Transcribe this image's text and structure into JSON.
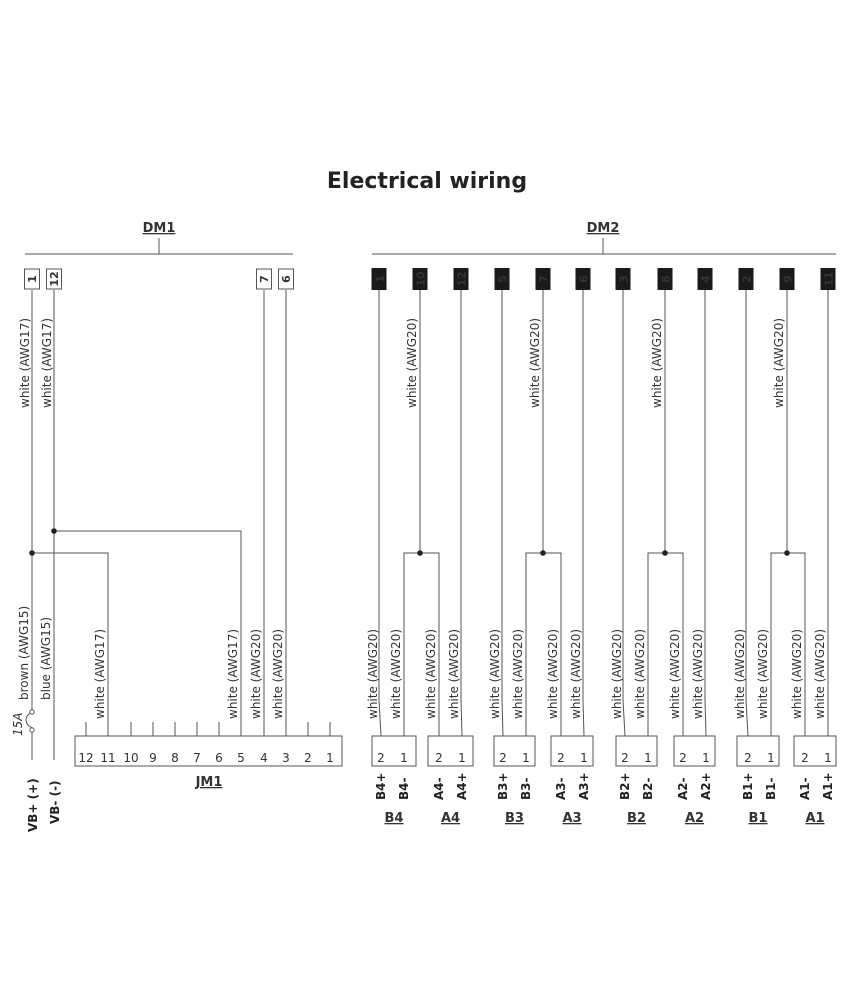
{
  "title": "Electrical wiring",
  "dm1": {
    "label": "DM1",
    "pins": [
      "1",
      "12",
      "7",
      "6"
    ],
    "wire_upper": [
      "white (AWG17)",
      "white (AWG17)"
    ]
  },
  "dm2": {
    "label": "DM2",
    "pins": [
      "1",
      "10",
      "12",
      "5",
      "7",
      "6",
      "3",
      "8",
      "4",
      "2",
      "9",
      "11"
    ],
    "upper_labels": [
      "white (AWG20)",
      "white (AWG20)",
      "white (AWG20)",
      "white (AWG20)"
    ]
  },
  "power": {
    "brown": "brown (AWG15)",
    "blue": "blue (AWG15)",
    "fuse": "15A",
    "vbplus": "VB+ (+)",
    "vbminus": "VB- (-)"
  },
  "jm1": {
    "label": "JM1",
    "terminals": [
      "12",
      "11",
      "10",
      "9",
      "8",
      "7",
      "6",
      "5",
      "4",
      "3",
      "2",
      "1"
    ],
    "wire_labels": [
      "white (AWG17)",
      "white (AWG17)",
      "white (AWG20)",
      "white (AWG20)"
    ]
  },
  "connectors": [
    {
      "label": "B4",
      "pins": [
        "2",
        "1"
      ],
      "signals": [
        "B4+",
        "B4-"
      ],
      "wires": [
        "white (AWG20)",
        "white (AWG20)"
      ]
    },
    {
      "label": "A4",
      "pins": [
        "2",
        "1"
      ],
      "signals": [
        "A4-",
        "A4+"
      ],
      "wires": [
        "white (AWG20)",
        "white (AWG20)"
      ]
    },
    {
      "label": "B3",
      "pins": [
        "2",
        "1"
      ],
      "signals": [
        "B3+",
        "B3-"
      ],
      "wires": [
        "white (AWG20)",
        "white (AWG20)"
      ]
    },
    {
      "label": "A3",
      "pins": [
        "2",
        "1"
      ],
      "signals": [
        "A3-",
        "A3+"
      ],
      "wires": [
        "white (AWG20)",
        "white (AWG20)"
      ]
    },
    {
      "label": "B2",
      "pins": [
        "2",
        "1"
      ],
      "signals": [
        "B2+",
        "B2-"
      ],
      "wires": [
        "white (AWG20)",
        "white (AWG20)"
      ]
    },
    {
      "label": "A2",
      "pins": [
        "2",
        "1"
      ],
      "signals": [
        "A2-",
        "A2+"
      ],
      "wires": [
        "white (AWG20)",
        "white (AWG20)"
      ]
    },
    {
      "label": "B1",
      "pins": [
        "2",
        "1"
      ],
      "signals": [
        "B1+",
        "B1-"
      ],
      "wires": [
        "white (AWG20)",
        "white (AWG20)"
      ]
    },
    {
      "label": "A1",
      "pins": [
        "2",
        "1"
      ],
      "signals": [
        "A1-",
        "A1+"
      ],
      "wires": [
        "white (AWG20)",
        "white (AWG20)"
      ]
    }
  ]
}
